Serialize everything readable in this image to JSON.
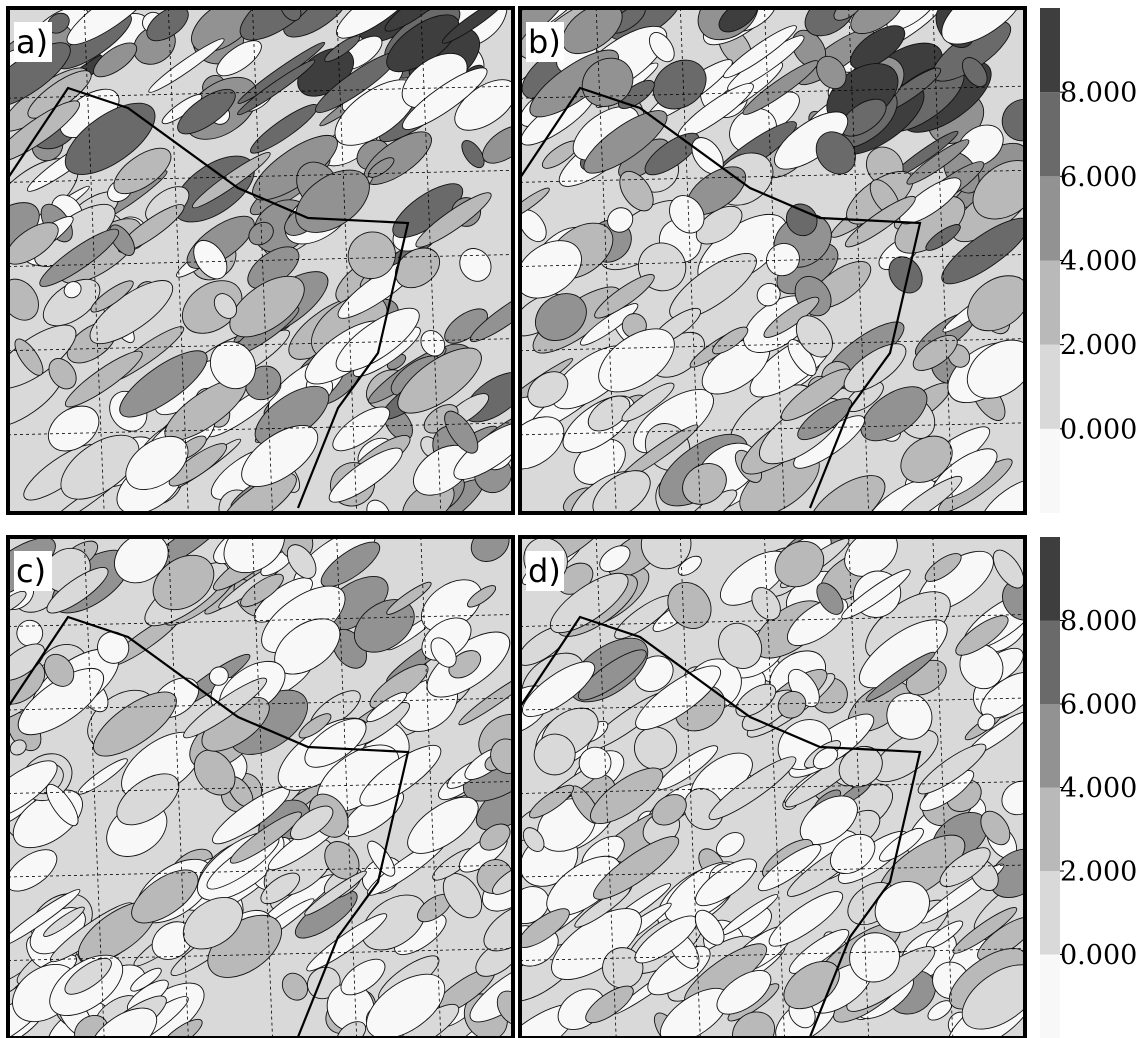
{
  "panels": [
    {
      "label": "a)"
    },
    {
      "label": "b)"
    },
    {
      "label": "c)"
    },
    {
      "label": "d)"
    }
  ],
  "colorbars": [
    {
      "ylim": [
        -2,
        10
      ],
      "bins": [
        -2,
        0,
        2,
        4,
        6,
        8,
        10
      ],
      "colors": [
        "#f8f8f8",
        "#d9d9d9",
        "#b9b9b9",
        "#929292",
        "#6a6a6a",
        "#3e3e3e"
      ],
      "yticks": [
        {
          "value": 0,
          "label": "0.000"
        },
        {
          "value": 2,
          "label": "2.000"
        },
        {
          "value": 4,
          "label": "4.000"
        },
        {
          "value": 6,
          "label": "6.000"
        },
        {
          "value": 8,
          "label": "8.000"
        }
      ]
    },
    {
      "ylim": [
        -2,
        10
      ],
      "bins": [
        -2,
        0,
        2,
        4,
        6,
        8,
        10
      ],
      "colors": [
        "#f8f8f8",
        "#d9d9d9",
        "#b9b9b9",
        "#929292",
        "#6a6a6a",
        "#3e3e3e"
      ],
      "yticks": [
        {
          "value": 0,
          "label": "0.000"
        },
        {
          "value": 2,
          "label": "2.000"
        },
        {
          "value": 4,
          "label": "4.000"
        },
        {
          "value": 6,
          "label": "6.000"
        },
        {
          "value": 8,
          "label": "8.000"
        }
      ]
    }
  ]
}
